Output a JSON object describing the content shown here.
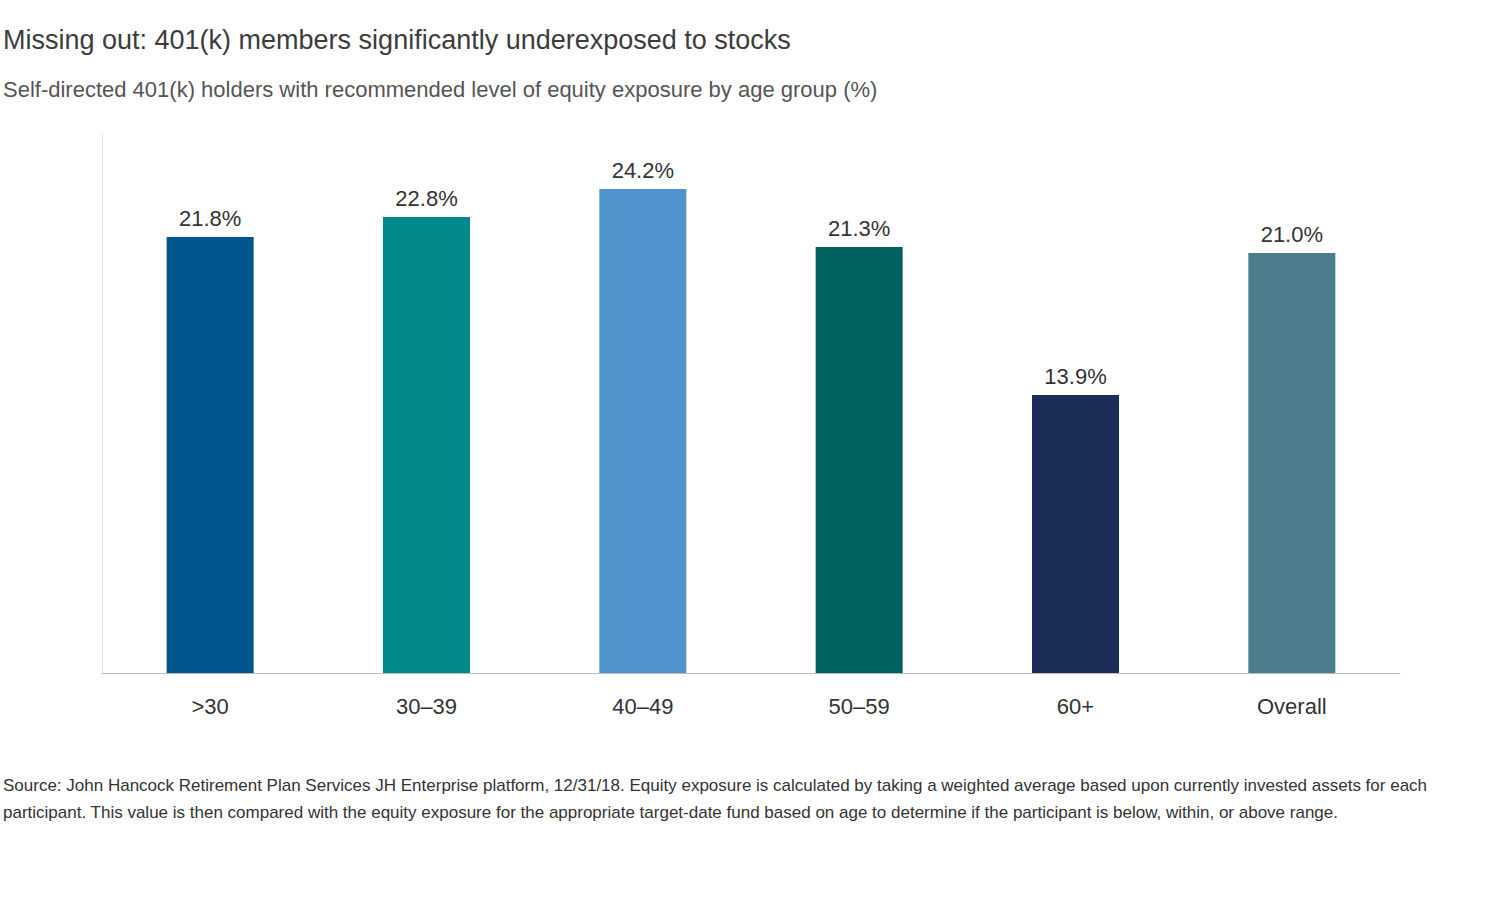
{
  "chart_data": {
    "type": "bar",
    "title": "Missing out: 401(k) members significantly underexposed to stocks",
    "subtitle": "Self-directed 401(k) holders with recommended level of equity exposure by age group (%)",
    "source": "Source: John Hancock Retirement Plan Services JH Enterprise platform, 12/31/18. Equity exposure is calculated by taking a weighted average based upon currently invested assets for each participant. This value is then compared with the equity exposure for the appropriate target-date fund based on age to determine if the participant is below, within, or above range.",
    "categories": [
      ">30",
      "30–39",
      "40–49",
      "50–59",
      "60+",
      "Overall"
    ],
    "values": [
      21.8,
      22.8,
      24.2,
      21.3,
      13.9,
      21.0
    ],
    "value_labels": [
      "21.8%",
      "22.8%",
      "24.2%",
      "21.3%",
      "13.9%",
      "21.0%"
    ],
    "colors": [
      "#00558c",
      "#03888c",
      "#4f94ce",
      "#00625f",
      "#1c2d57",
      "#4d7d8c"
    ],
    "ylim": [
      0,
      27
    ],
    "grid": false,
    "data_labels": true,
    "tick_labels": "x"
  }
}
